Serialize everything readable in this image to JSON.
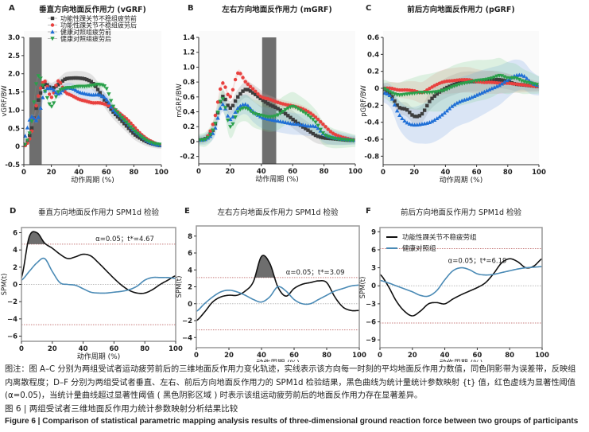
{
  "legend_groups": [
    "功能性踝关节不稳组疲劳前",
    "功能性踝关节不稳组疲劳后",
    "健康对照组疲劳前",
    "健康对照组疲劳后"
  ],
  "spm_legend": [
    "功能性踝关节不稳疲劳组",
    "健康对照组"
  ],
  "colors": {
    "pre_fai": "#3d3d3d",
    "post_fai": "#e8413f",
    "pre_ctrl": "#1f6fd6",
    "post_ctrl": "#2aa04a",
    "spm_fai": "#111111",
    "spm_ctrl": "#4a8ab5",
    "threshold": "#c77b7b",
    "shade": "#555555"
  },
  "chart_data": [
    {
      "panel": "A",
      "type": "line",
      "title": "垂直方向地面反作用力 (vGRF)",
      "xlabel": "动作周期 (%)",
      "ylabel": "vGRF/BW",
      "xlim": [
        0,
        100
      ],
      "ylim": [
        -0.5,
        3.0
      ],
      "xticks": [
        0,
        20,
        40,
        60,
        80,
        100
      ],
      "yticks": [
        -0.5,
        0,
        0.5,
        1.0,
        1.5,
        2.0,
        2.5,
        3.0
      ],
      "ytick_labels": [
        "-0.5",
        "0",
        "0.5",
        "1.0",
        "1.5",
        "2.0",
        "2.5",
        "3.0"
      ],
      "legend": "top-left",
      "significant_region": [
        4,
        13
      ],
      "x": [
        0,
        5,
        10,
        15,
        20,
        25,
        30,
        35,
        40,
        45,
        50,
        55,
        60,
        65,
        70,
        75,
        80,
        85,
        90,
        95,
        100
      ],
      "series": [
        {
          "name": "功能性踝关节不稳组疲劳前",
          "marker": "square",
          "sd": 0.2,
          "values": [
            0,
            0.4,
            1.2,
            1.7,
            1.6,
            1.7,
            1.85,
            1.88,
            1.88,
            1.85,
            1.75,
            1.5,
            1.2,
            0.95,
            0.75,
            0.55,
            0.35,
            0.22,
            0.12,
            0.06,
            0.02
          ]
        },
        {
          "name": "功能性踝关节不稳组疲劳后",
          "marker": "circle",
          "sd": 0.07,
          "values": [
            0,
            0.3,
            1.3,
            1.8,
            1.35,
            1.8,
            1.5,
            1.4,
            1.3,
            1.25,
            1.2,
            1.2,
            1.15,
            1.05,
            0.9,
            0.75,
            0.55,
            0.35,
            0.2,
            0.1,
            0.02
          ]
        },
        {
          "name": "健康对照组疲劳前",
          "marker": "triangle-up",
          "sd": 0.15,
          "values": [
            0.2,
            0.8,
            0.75,
            1.5,
            1.6,
            1.45,
            1.6,
            1.6,
            1.5,
            1.45,
            1.42,
            1.42,
            1.3,
            1.0,
            0.85,
            0.65,
            0.45,
            0.3,
            0.15,
            0.07,
            0.03
          ]
        },
        {
          "name": "健康对照组疲劳后",
          "marker": "triangle-down",
          "sd": 0.08,
          "values": [
            0,
            0.5,
            1.9,
            1.55,
            1.1,
            1.5,
            1.6,
            1.62,
            1.65,
            1.65,
            1.68,
            1.7,
            1.6,
            1.1,
            0.85,
            0.65,
            0.45,
            0.28,
            0.15,
            0.08,
            0.05
          ]
        }
      ]
    },
    {
      "panel": "B",
      "type": "line",
      "title": "左右方向地面反作用力 (mGRF)",
      "xlabel": "动作周期 (%)",
      "ylabel": "mGRF/BW",
      "xlim": [
        0,
        100
      ],
      "ylim": [
        -0.3,
        1.4
      ],
      "xticks": [
        0,
        20,
        40,
        60,
        80,
        100
      ],
      "yticks": [
        -0.2,
        0,
        0.2,
        0.4,
        0.6,
        0.8,
        1.0,
        1.2,
        1.4
      ],
      "ytick_labels": [
        "-0.2",
        "0",
        "0.2",
        "0.4",
        "0.6",
        "0.8",
        "1.0",
        "1.2",
        "1.4"
      ],
      "significant_region": [
        40.5,
        49.5
      ],
      "x": [
        0,
        5,
        10,
        15,
        20,
        25,
        30,
        35,
        40,
        45,
        50,
        55,
        60,
        65,
        70,
        75,
        80,
        85,
        90,
        95,
        100
      ],
      "series": [
        {
          "name": "功能性踝关节不稳组疲劳前",
          "marker": "square",
          "sd": 0.12,
          "values": [
            0.02,
            0.05,
            0.2,
            0.6,
            0.45,
            0.6,
            0.7,
            0.65,
            0.57,
            0.5,
            0.45,
            0.38,
            0.3,
            0.22,
            0.15,
            0.08,
            0.05,
            0.04,
            0.03,
            0.02,
            0.02
          ]
        },
        {
          "name": "功能性踝关节不稳组疲劳后",
          "marker": "circle",
          "sd": 0.05,
          "values": [
            0.02,
            0.05,
            0.3,
            0.78,
            0.6,
            0.92,
            0.8,
            0.7,
            0.6,
            0.57,
            0.53,
            0.5,
            0.48,
            0.45,
            0.4,
            0.32,
            0.22,
            0.12,
            0.07,
            0.04,
            0.02
          ]
        },
        {
          "name": "健康对照组疲劳前",
          "marker": "triangle-up",
          "sd": 0.15,
          "values": [
            0.02,
            0.04,
            0.15,
            0.5,
            0.3,
            0.45,
            0.5,
            0.4,
            0.33,
            0.3,
            0.28,
            0.26,
            0.24,
            0.23,
            0.21,
            0.2,
            0.1,
            0.06,
            0.04,
            0.03,
            0.02
          ]
        },
        {
          "name": "健康对照组疲劳后",
          "marker": "triangle-down",
          "sd": 0.2,
          "values": [
            0.02,
            0.04,
            0.2,
            0.58,
            0.2,
            0.4,
            0.45,
            0.38,
            0.35,
            0.33,
            0.35,
            0.42,
            0.47,
            0.42,
            0.35,
            0.25,
            0.1,
            0.05,
            0.03,
            0.02,
            0.01
          ]
        }
      ]
    },
    {
      "panel": "C",
      "type": "line",
      "title": "前后方向地面反作用力 (pGRF)",
      "xlabel": "动作周期 (%)",
      "ylabel": "pGRF/BW",
      "xlim": [
        0,
        100
      ],
      "ylim": [
        -0.9,
        0.6
      ],
      "xticks": [
        0,
        20,
        40,
        60,
        80,
        100
      ],
      "yticks": [
        -0.8,
        -0.6,
        -0.4,
        -0.2,
        0,
        0.2,
        0.4,
        0.6
      ],
      "ytick_labels": [
        "-0.8",
        "-0.6",
        "-0.4",
        "-0.2",
        "0",
        "0.2",
        "0.4",
        "0.6"
      ],
      "x": [
        0,
        5,
        10,
        15,
        20,
        25,
        30,
        35,
        40,
        45,
        50,
        55,
        60,
        65,
        70,
        75,
        80,
        85,
        90,
        95,
        100
      ],
      "series": [
        {
          "name": "功能性踝关节不稳组疲劳前",
          "marker": "square",
          "sd": 0.12,
          "values": [
            0,
            -0.08,
            -0.22,
            -0.25,
            -0.33,
            -0.3,
            -0.15,
            -0.06,
            0.0,
            0.04,
            0.07,
            0.08,
            0.08,
            0.09,
            0.1,
            0.1,
            0.08,
            0.05,
            0.04,
            0.03,
            0.02
          ]
        },
        {
          "name": "功能性踝关节不稳组疲劳后",
          "marker": "circle",
          "sd": 0.15,
          "values": [
            0,
            0,
            -0.02,
            -0.02,
            -0.03,
            -0.05,
            0.0,
            0.05,
            0.08,
            0.09,
            0.1,
            0.1,
            0.08,
            0.07,
            0.07,
            0.06,
            0.06,
            0.05,
            0.04,
            0.03,
            0.02
          ]
        },
        {
          "name": "健康对照组疲劳前",
          "marker": "triangle-up",
          "sd": 0.28,
          "values": [
            -0.05,
            -0.1,
            -0.3,
            -0.4,
            -0.43,
            -0.42,
            -0.4,
            -0.35,
            -0.28,
            -0.2,
            -0.15,
            -0.12,
            -0.08,
            -0.04,
            0.0,
            0.04,
            0.1,
            0.15,
            0.15,
            0.07,
            0.03
          ]
        },
        {
          "name": "健康对照组疲劳后",
          "marker": "triangle-down",
          "sd": 0.25,
          "values": [
            0,
            -0.05,
            -0.08,
            -0.07,
            -0.06,
            -0.05,
            -0.05,
            -0.04,
            -0.02,
            0.02,
            0.05,
            0.07,
            0.09,
            0.1,
            0.12,
            0.15,
            0.12,
            0.12,
            0.08,
            0.06,
            0.04
          ]
        }
      ]
    },
    {
      "panel": "D",
      "type": "line",
      "title": "垂直方向地面反作用力 SPM1d 检验",
      "xlabel": "动作周期 (%)",
      "ylabel": "SPM(t)",
      "xlim": [
        0,
        100
      ],
      "ylim": [
        -6.6,
        6.6
      ],
      "xticks": [
        0,
        20,
        40,
        60,
        80,
        100
      ],
      "yticks": [
        -6,
        -4,
        -2,
        0,
        2,
        4,
        6
      ],
      "ytick_labels": [
        "−6",
        "−4",
        "−2",
        "0",
        "2",
        "4",
        "6"
      ],
      "threshold": 4.67,
      "annotation": "α=0.05；t*=4.67",
      "x": [
        0,
        5,
        10,
        15,
        20,
        25,
        30,
        35,
        40,
        45,
        50,
        55,
        60,
        65,
        70,
        75,
        80,
        85,
        90,
        95,
        100
      ],
      "series": [
        {
          "name": "功能性踝关节不稳疲劳组",
          "values": [
            0.8,
            5.5,
            6,
            4.8,
            4.2,
            3.5,
            3,
            3.2,
            3.5,
            3.3,
            2.5,
            1.6,
            0.7,
            -0.1,
            -0.7,
            -1.0,
            -1.0,
            -0.6,
            0,
            0.5,
            1.0
          ]
        },
        {
          "name": "健康对照组",
          "values": [
            0.5,
            1.5,
            2.5,
            3.0,
            1.5,
            0.2,
            0,
            -0.1,
            -0.5,
            -0.9,
            -1.0,
            -1.0,
            -0.9,
            -0.8,
            -0.6,
            -0.2,
            0.5,
            0.8,
            0.8,
            0.8,
            0.7
          ]
        }
      ]
    },
    {
      "panel": "E",
      "type": "line",
      "title": "左右方向地面反作用力 SPM1d 检验",
      "xlabel": "动作周期 (%)",
      "ylabel": "SPM(t)",
      "xlim": [
        0,
        100
      ],
      "ylim": [
        -5.2,
        9.2
      ],
      "xticks": [
        0,
        20,
        40,
        60,
        80,
        100
      ],
      "yticks": [
        -4,
        -2,
        0,
        2,
        4,
        6,
        8
      ],
      "ytick_labels": [
        "−4",
        "−2",
        "0",
        "2",
        "4",
        "6",
        "8"
      ],
      "threshold": 3.09,
      "annotation": "α=0.05；t*=3.09",
      "x": [
        0,
        5,
        10,
        15,
        20,
        25,
        30,
        35,
        40,
        45,
        50,
        55,
        60,
        65,
        70,
        75,
        80,
        85,
        90,
        95,
        100
      ],
      "series": [
        {
          "name": "功能性踝关节不稳疲劳组",
          "values": [
            -2,
            -1,
            0.2,
            0.8,
            1.0,
            1.0,
            1.5,
            2.6,
            5.6,
            4.8,
            2.0,
            0.9,
            1.8,
            2.3,
            2.5,
            2.7,
            2.5,
            0.8,
            -0.4,
            -0.8,
            -0.8
          ]
        },
        {
          "name": "健康对照组",
          "values": [
            -0.9,
            0,
            0.8,
            1.4,
            1.6,
            1.4,
            1.0,
            0.5,
            0.2,
            0.8,
            2.0,
            1.5,
            0.5,
            0,
            0,
            0.5,
            1.0,
            1.5,
            1.8,
            2.1,
            2.2
          ]
        }
      ]
    },
    {
      "panel": "F",
      "type": "line",
      "title": "前后方向地面反作用力 SPM1d 检验",
      "xlabel": "动作周期 (%)",
      "ylabel": "SPM(t)",
      "xlim": [
        0,
        100
      ],
      "ylim": [
        -10.3,
        9.7
      ],
      "xticks": [
        0,
        20,
        40,
        60,
        80,
        100
      ],
      "yticks": [
        -9,
        -6,
        -3,
        0,
        3,
        6,
        9
      ],
      "ytick_labels": [
        "−9",
        "−6",
        "−3",
        "0",
        "3",
        "6",
        "9"
      ],
      "threshold": 6.19,
      "annotation": "α=0.05；t*=6.19",
      "legend": "top-left",
      "x": [
        0,
        5,
        10,
        15,
        20,
        25,
        30,
        35,
        40,
        45,
        50,
        55,
        60,
        65,
        70,
        75,
        80,
        85,
        90,
        95,
        100
      ],
      "series": [
        {
          "name": "功能性踝关节不稳疲劳组",
          "values": [
            1.9,
            0,
            -2.5,
            -4.2,
            -5.0,
            -4.2,
            -3.0,
            -2.8,
            -3.0,
            -2.2,
            -1.5,
            -0.9,
            -0.3,
            0.5,
            2.0,
            3.8,
            4.5,
            4.0,
            3.0,
            3.3,
            4.5
          ]
        },
        {
          "name": "健康对照组",
          "values": [
            0.9,
            0.5,
            0,
            -0.5,
            -1.0,
            -1.6,
            -1.7,
            -0.8,
            1.0,
            2.5,
            3.0,
            2.7,
            2.0,
            1.8,
            1.9,
            2.2,
            2.5,
            2.8,
            3.0,
            3.1,
            3.2
          ]
        }
      ]
    }
  ],
  "caption": {
    "note": "图注：图 A–C 分别为两组受试者运动疲劳前后的三维地面反作用力变化轨迹，实线表示该方向每一时刻的平均地面反作用力数值，同色阴影带为误差带，反映组内离散程度；D–F 分别为两组受试者垂直、左右、前后方向地面反作用力的 SPM1d 检验结果，黑色曲线为统计量统计参数映射 {t} 值，红色虚线为显著性阈值 (α=0.05)，当统计量曲线超过显著性阈值 ( 黑色阴影区域 ) 时表示该组运动疲劳前后的地面反作用力存在显著差异。",
    "cn_title": "图 6 | 两组受试者三维地面反作用力统计参数映射分析结果比较",
    "en_title": "Figure 6 | Comparison of statistical parametric mapping analysis results of three-dimensional ground reaction force between two groups of participants"
  }
}
